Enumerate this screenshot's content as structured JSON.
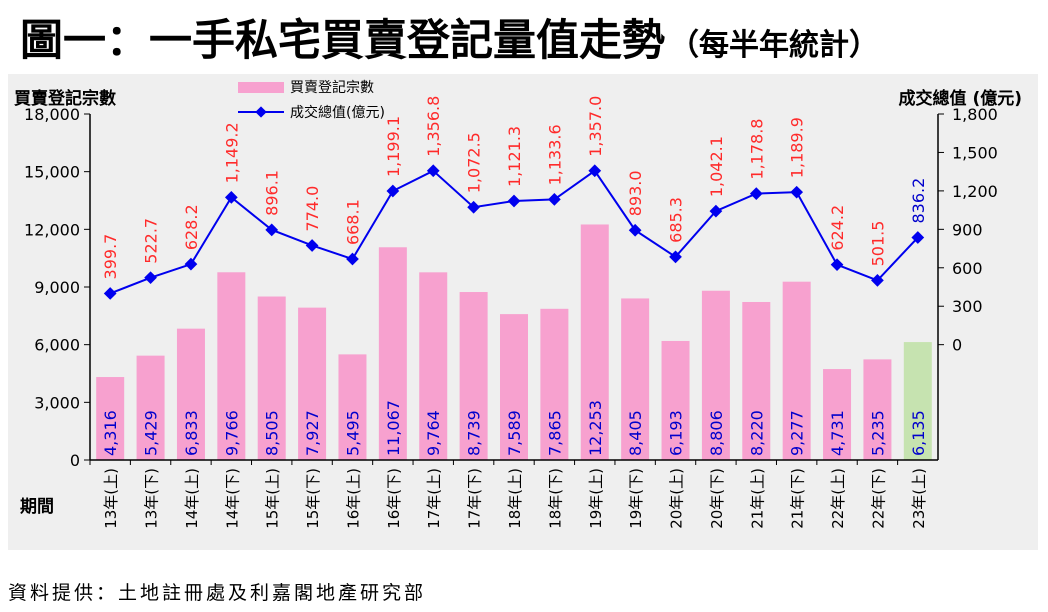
{
  "title": "圖一：一手私宅買賣登記量值走勢",
  "subtitle": "（每半年統計）",
  "source": "資料提供：土地註冊處及利嘉閣地產研究部",
  "colors": {
    "bar": "#f7a1cf",
    "bar_highlight": "#c6e3b0",
    "line": "#0000ee",
    "line_label": "#ff2a2a",
    "bar_label": "#0000cc",
    "panel_bg": "#efefef"
  },
  "chart_data": {
    "type": "bar",
    "title": "",
    "xlabel": "期間",
    "ylabel": "買賣登記宗數",
    "ylabel_right": "成交總值 (億元)",
    "ylim": [
      0,
      18000
    ],
    "yticks": [
      "18,000",
      "15,000",
      "12,000",
      "9,000",
      "6,000",
      "3,000",
      "0"
    ],
    "y2lim": [
      -900,
      1800
    ],
    "y2ticks": [
      "1,800",
      "1,500",
      "1,200",
      "900",
      "600",
      "300",
      "0"
    ],
    "legend_position": "top-left",
    "grid": false,
    "categories": [
      "13年(上)",
      "13年(下)",
      "14年(上)",
      "14年(下)",
      "15年(上)",
      "15年(下)",
      "16年(上)",
      "16年(下)",
      "17年(上)",
      "17年(下)",
      "18年(上)",
      "18年(下)",
      "19年(上)",
      "19年(下)",
      "20年(上)",
      "20年(下)",
      "21年(上)",
      "21年(下)",
      "22年(上)",
      "22年(下)",
      "23年(上)"
    ],
    "series": [
      {
        "name": "買賣登記宗數",
        "kind": "bar",
        "axis": "left",
        "values": [
          4316,
          5429,
          6833,
          9766,
          8505,
          7927,
          5495,
          11067,
          9764,
          8739,
          7589,
          7865,
          12253,
          8405,
          6193,
          8806,
          8220,
          9277,
          4731,
          5235,
          6135
        ],
        "labels": [
          "4,316",
          "5,429",
          "6,833",
          "9,766",
          "8,505",
          "7,927",
          "5,495",
          "11,067",
          "9,764",
          "8,739",
          "7,589",
          "7,865",
          "12,253",
          "8,405",
          "6,193",
          "8,806",
          "8,220",
          "9,277",
          "4,731",
          "5,235",
          "6,135"
        ]
      },
      {
        "name": "成交總值(億元)",
        "kind": "line",
        "axis": "right",
        "values": [
          399.7,
          522.7,
          628.2,
          1149.2,
          896.1,
          774.0,
          668.1,
          1199.1,
          1356.8,
          1072.5,
          1121.3,
          1133.6,
          1357.0,
          893.0,
          685.3,
          1042.1,
          1178.8,
          1189.9,
          624.2,
          501.5,
          836.2
        ],
        "labels": [
          "399.7",
          "522.7",
          "628.2",
          "1,149.2",
          "896.1",
          "774.0",
          "668.1",
          "1,199.1",
          "1,356.8",
          "1,072.5",
          "1,121.3",
          "1,133.6",
          "1,357.0",
          "893.0",
          "685.3",
          "1,042.1",
          "1,178.8",
          "1,189.9",
          "624.2",
          "501.5",
          "836.2"
        ]
      }
    ]
  }
}
